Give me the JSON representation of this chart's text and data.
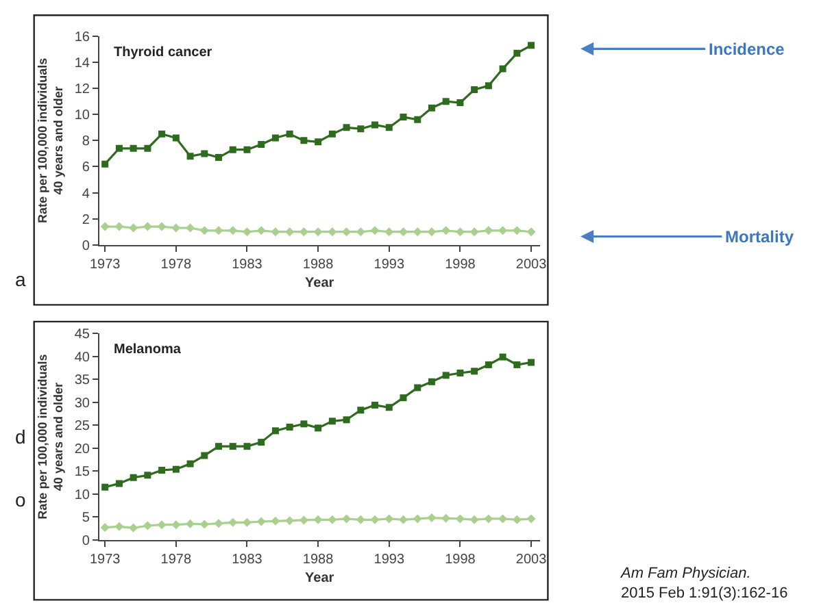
{
  "chart_data": [
    {
      "type": "line",
      "title": "Thyroid cancer",
      "xlabel": "Year",
      "ylabel": "Rate per 100,000 individuals\n40 years and older",
      "x": [
        1973,
        1974,
        1975,
        1976,
        1977,
        1978,
        1979,
        1980,
        1981,
        1982,
        1983,
        1984,
        1985,
        1986,
        1987,
        1988,
        1989,
        1990,
        1991,
        1992,
        1993,
        1994,
        1995,
        1996,
        1997,
        1998,
        1999,
        2000,
        2001,
        2002,
        2003
      ],
      "series": [
        {
          "color": "#2e6b1e",
          "marker": "square",
          "values": [
            6.2,
            7.4,
            7.4,
            7.4,
            8.5,
            8.2,
            6.8,
            7.0,
            6.7,
            7.3,
            7.3,
            7.7,
            8.2,
            8.5,
            8.0,
            7.9,
            8.5,
            9.0,
            8.9,
            9.2,
            9.0,
            9.8,
            9.6,
            10.5,
            11.0,
            10.9,
            11.9,
            12.2,
            13.5,
            14.7,
            15.3
          ]
        },
        {
          "color": "#a9d08e",
          "marker": "diamond",
          "values": [
            1.4,
            1.4,
            1.3,
            1.4,
            1.4,
            1.3,
            1.3,
            1.1,
            1.1,
            1.1,
            1.0,
            1.1,
            1.0,
            1.0,
            1.0,
            1.0,
            1.0,
            1.0,
            1.0,
            1.1,
            1.0,
            1.0,
            1.0,
            1.0,
            1.1,
            1.0,
            1.0,
            1.1,
            1.1,
            1.1,
            1.0
          ]
        }
      ],
      "xlim": [
        1972.6,
        2003.6
      ],
      "xticks": [
        1973,
        1978,
        1983,
        1988,
        1993,
        1998,
        2003
      ],
      "ylim": [
        0,
        16
      ],
      "yticks": [
        0,
        2,
        4,
        6,
        8,
        10,
        12,
        14,
        16
      ],
      "line_style": "solid",
      "annotations": [
        "Incidence",
        "Mortality",
        "a"
      ]
    },
    {
      "type": "line",
      "title": "Melanoma",
      "xlabel": "Year",
      "ylabel": "Rate per 100,000 individuals\n40 years and older",
      "x": [
        1973,
        1974,
        1975,
        1976,
        1977,
        1978,
        1979,
        1980,
        1981,
        1982,
        1983,
        1984,
        1985,
        1986,
        1987,
        1988,
        1989,
        1990,
        1991,
        1992,
        1993,
        1994,
        1995,
        1996,
        1997,
        1998,
        1999,
        2000,
        2001,
        2002,
        2003
      ],
      "series": [
        {
          "color": "#2e6b1e",
          "marker": "square",
          "values": [
            11.5,
            12.3,
            13.6,
            14.1,
            15.2,
            15.4,
            16.6,
            18.4,
            20.4,
            20.4,
            20.4,
            21.3,
            23.8,
            24.6,
            25.3,
            24.4,
            25.9,
            26.2,
            28.3,
            29.4,
            28.9,
            31.0,
            33.2,
            34.5,
            35.9,
            36.4,
            36.8,
            38.2,
            39.9,
            38.2,
            38.7
          ]
        },
        {
          "color": "#a9d08e",
          "marker": "diamond",
          "values": [
            2.7,
            2.9,
            2.6,
            3.1,
            3.3,
            3.3,
            3.5,
            3.4,
            3.6,
            3.8,
            3.8,
            4.0,
            4.1,
            4.2,
            4.3,
            4.4,
            4.4,
            4.6,
            4.4,
            4.4,
            4.6,
            4.4,
            4.6,
            4.8,
            4.7,
            4.6,
            4.4,
            4.6,
            4.6,
            4.4,
            4.6
          ]
        }
      ],
      "xlim": [
        1972.6,
        2003.6
      ],
      "xticks": [
        1973,
        1978,
        1983,
        1988,
        1993,
        1998,
        2003
      ],
      "ylim": [
        0,
        45
      ],
      "yticks": [
        0,
        5,
        10,
        15,
        20,
        25,
        30,
        35,
        40,
        45
      ],
      "line_style": "solid",
      "annotations": [
        "d",
        "o",
        "Am Fam Physician.\n2015 Feb 1:91(3):162-16"
      ]
    }
  ]
}
